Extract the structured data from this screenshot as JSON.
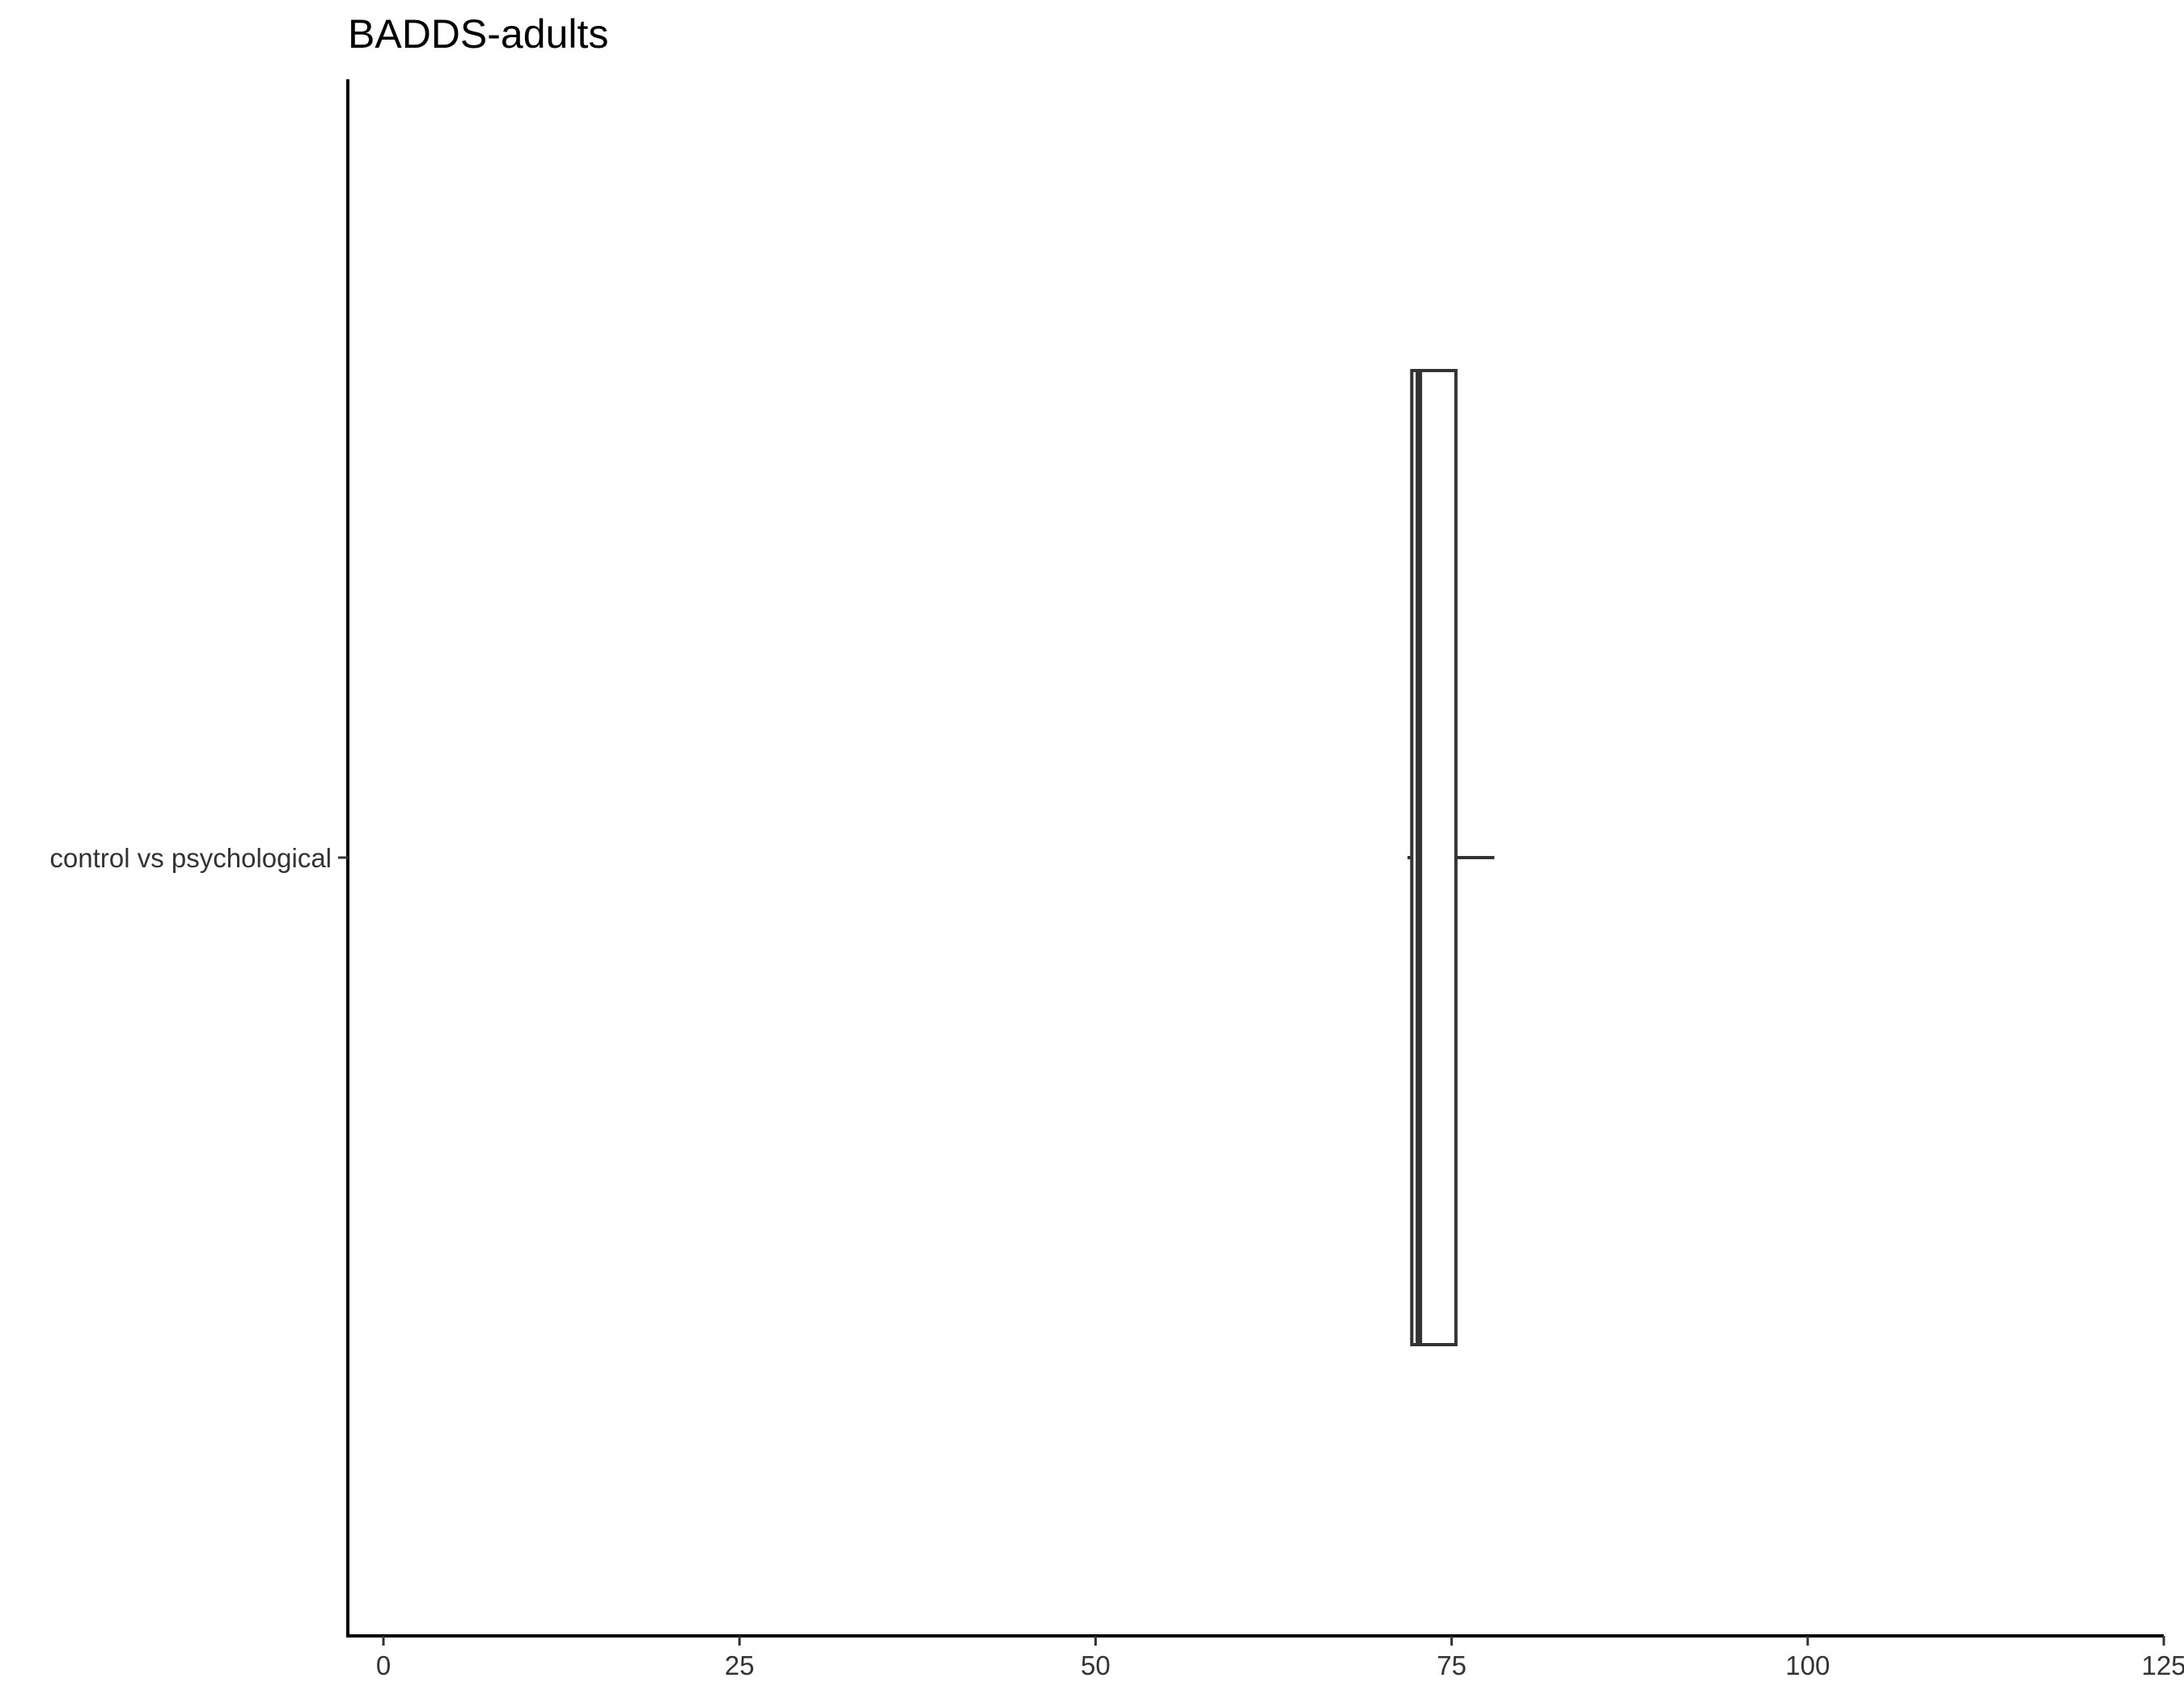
{
  "chart_data": {
    "type": "boxplot",
    "orientation": "horizontal",
    "title": "BADDS-adults",
    "xlabel": "",
    "ylabel": "",
    "xlim": [
      -2.5,
      125
    ],
    "xticks": [
      0,
      25,
      50,
      75,
      100,
      125
    ],
    "xtick_labels": [
      "0",
      "25",
      "50",
      "75",
      "100",
      "125"
    ],
    "categories": [
      "control vs psychological"
    ],
    "series": [
      {
        "category": "control vs psychological",
        "whisker_low": 71.9,
        "q1": 72.2,
        "median": 72.7,
        "q3": 75.3,
        "whisker_high": 78
      }
    ],
    "grid": false,
    "legend": "none"
  }
}
